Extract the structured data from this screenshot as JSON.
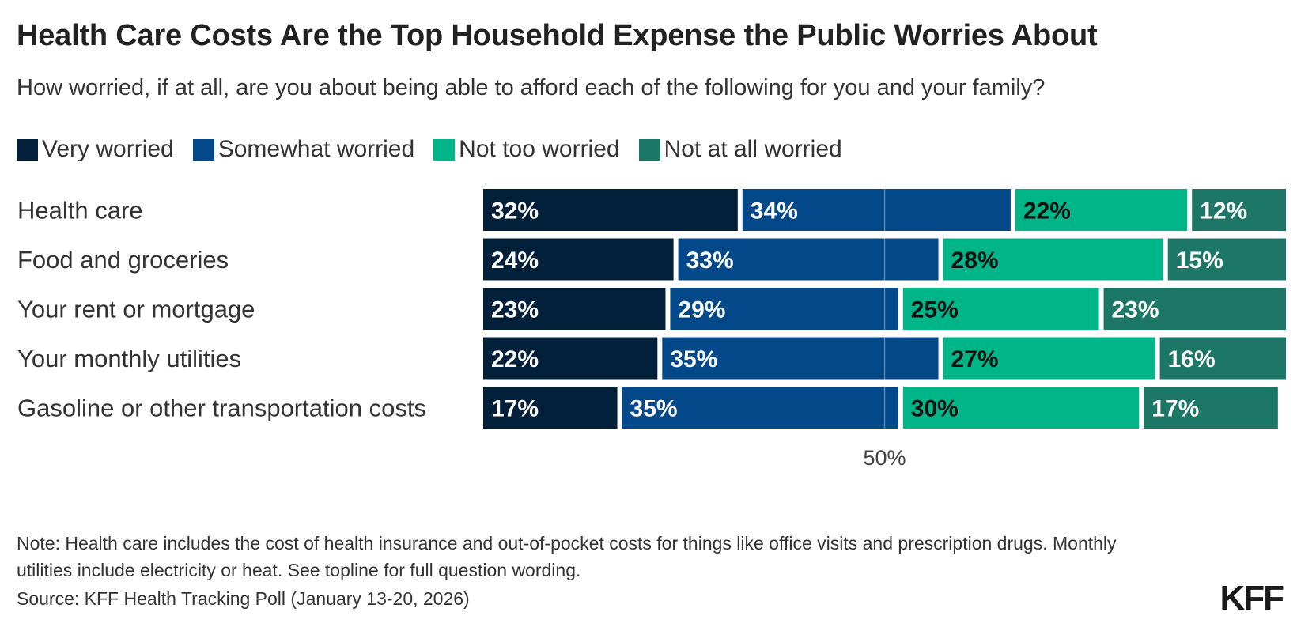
{
  "chart_data": {
    "type": "bar",
    "orientation": "horizontal",
    "stacked": true,
    "title": "Health Care Costs Are the Top Household Expense the Public Worries About",
    "subtitle": "How worried, if at all, are you about being able to afford each of the following for you and your family?",
    "categories": [
      "Health care",
      "Food and groceries",
      "Your rent or mortgage",
      "Your monthly utilities",
      "Gasoline or other transportation costs"
    ],
    "series": [
      {
        "name": "Very worried",
        "color": "#03203a",
        "values": [
          32,
          24,
          23,
          22,
          17
        ]
      },
      {
        "name": "Somewhat worried",
        "color": "#034888",
        "values": [
          34,
          33,
          29,
          35,
          35
        ]
      },
      {
        "name": "Not too worried",
        "color": "#00b587",
        "values": [
          22,
          28,
          25,
          27,
          30
        ]
      },
      {
        "name": "Not at all worried",
        "color": "#1d7766",
        "values": [
          12,
          15,
          23,
          16,
          17
        ]
      }
    ],
    "value_suffix": "%",
    "xlim": [
      0,
      100
    ],
    "reference_line": {
      "value": 50,
      "label": "50%"
    },
    "legend": "top-left",
    "grid": false
  },
  "footer": {
    "note": "Note: Health care includes the cost of health insurance and out-of-pocket costs for things like office visits and prescription drugs. Monthly utilities include electricity or heat. See topline for full question wording.",
    "source": "Source: KFF Health Tracking Poll (January 13-20, 2026)",
    "logo_text": "KFF"
  }
}
